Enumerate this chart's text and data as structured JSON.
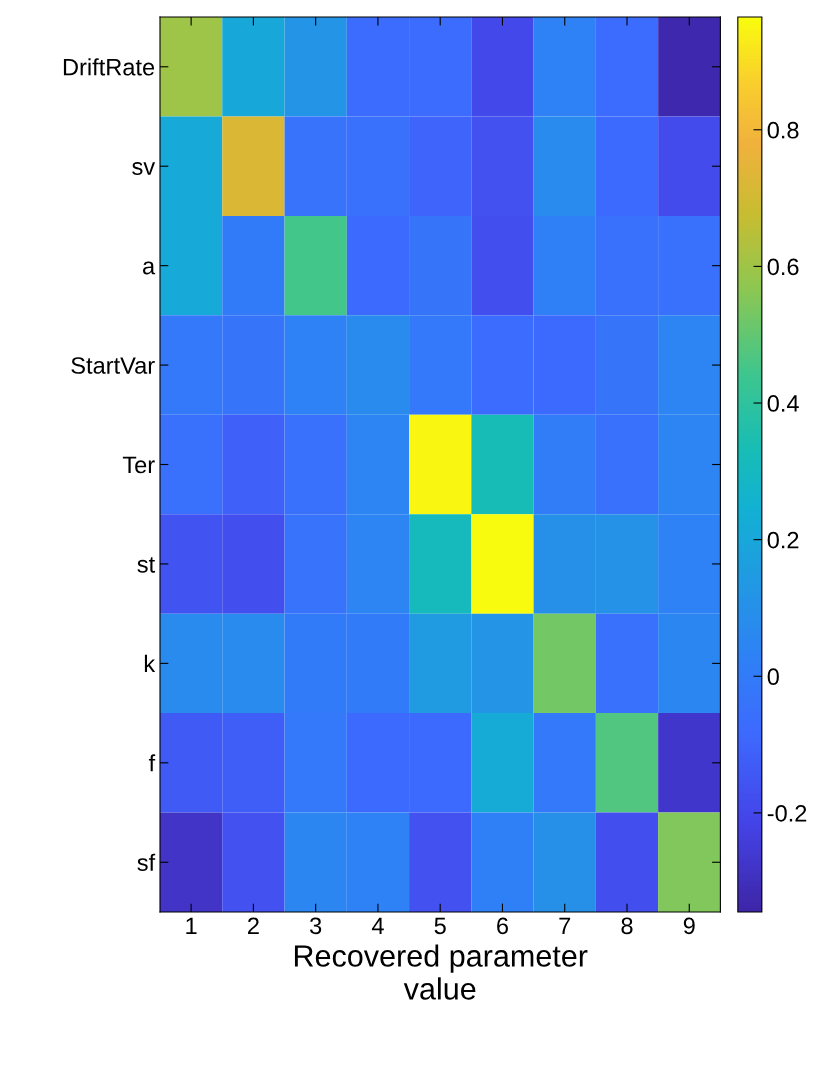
{
  "chart_data": {
    "type": "heatmap",
    "xlabel": "Recovered parameter\nvalue",
    "categories": [
      "1",
      "2",
      "3",
      "4",
      "5",
      "6",
      "7",
      "8",
      "9"
    ],
    "y_categories": [
      "DriftRate",
      "sv",
      "a",
      "StartVar",
      "Ter",
      "st",
      "k",
      "f",
      "sf"
    ],
    "cells": [
      [
        0.6,
        0.2,
        0.12,
        -0.07,
        -0.07,
        -0.2,
        0.03,
        -0.07,
        -0.33
      ],
      [
        0.21,
        0.72,
        -0.04,
        -0.05,
        -0.1,
        -0.17,
        0.07,
        -0.08,
        -0.19
      ],
      [
        0.21,
        0.0,
        0.45,
        -0.08,
        -0.03,
        -0.18,
        0.02,
        -0.05,
        -0.05
      ],
      [
        -0.01,
        -0.03,
        0.03,
        0.07,
        -0.01,
        -0.07,
        -0.08,
        -0.03,
        0.04
      ],
      [
        -0.05,
        -0.11,
        -0.05,
        0.04,
        0.95,
        0.33,
        0.01,
        -0.05,
        0.04
      ],
      [
        -0.16,
        -0.18,
        -0.04,
        0.04,
        0.31,
        0.96,
        0.1,
        0.11,
        0.03
      ],
      [
        0.07,
        0.07,
        0.0,
        0.0,
        0.15,
        0.12,
        0.53,
        -0.05,
        0.05
      ],
      [
        -0.14,
        -0.12,
        -0.01,
        -0.08,
        -0.08,
        0.22,
        -0.01,
        0.47,
        -0.27
      ],
      [
        -0.28,
        -0.17,
        0.05,
        0.03,
        -0.17,
        0.02,
        0.1,
        -0.18,
        0.55
      ]
    ],
    "clim": [
      -0.345,
      0.965
    ],
    "cticks": [
      {
        "value": -0.2,
        "label": "-0.2"
      },
      0,
      0.2,
      0.4,
      0.6,
      0.8
    ]
  }
}
